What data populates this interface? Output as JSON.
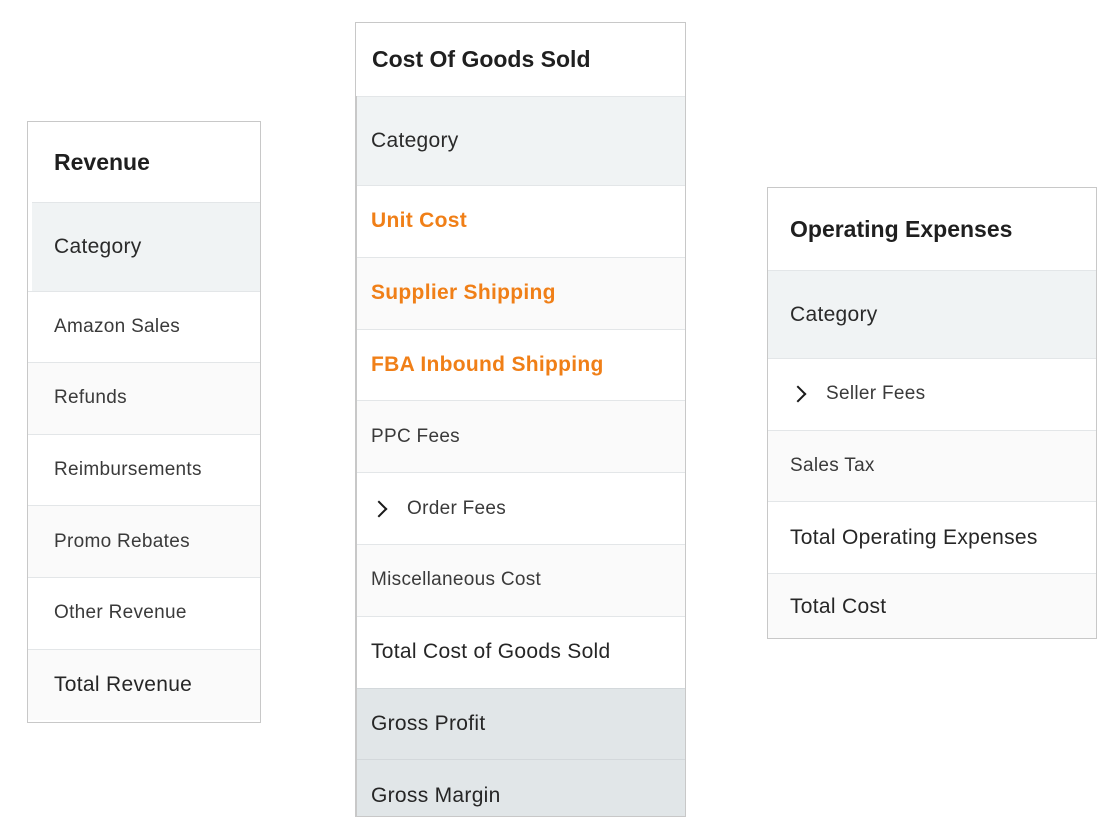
{
  "revenue": {
    "title": "Revenue",
    "header": "Category",
    "rows": [
      "Amazon Sales",
      "Refunds",
      "Reimbursements",
      "Promo Rebates",
      "Other Revenue"
    ],
    "total": "Total Revenue"
  },
  "cogs": {
    "title": "Cost Of Goods Sold",
    "header": "Category",
    "accent_rows": [
      "Unit Cost",
      "Supplier Shipping",
      "FBA Inbound Shipping"
    ],
    "rows": [
      "PPC Fees",
      "Order Fees",
      "Miscellaneous Cost"
    ],
    "total": "Total Cost of Goods Sold",
    "summary": [
      "Gross Profit",
      "Gross Margin"
    ]
  },
  "opex": {
    "title": "Operating Expenses",
    "header": "Category",
    "rows": [
      "Seller Fees",
      "Sales Tax"
    ],
    "total": "Total Operating Expenses",
    "grand_total": "Total Cost"
  },
  "colors": {
    "accent": "#f07f17",
    "header_bg": "#f0f3f4",
    "summary_bg": "#e1e6e8",
    "border": "#c8c8c8"
  }
}
